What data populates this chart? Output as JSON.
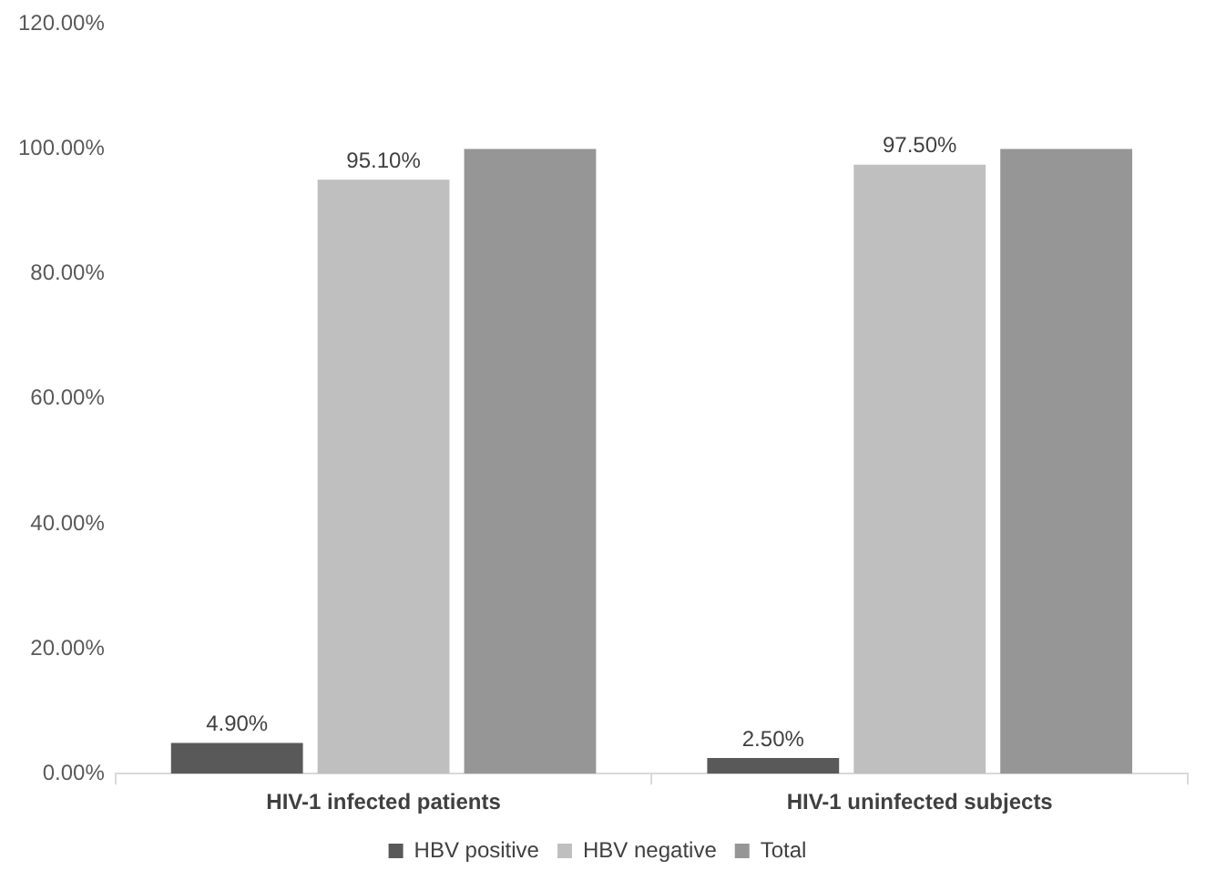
{
  "chart_data": {
    "type": "bar",
    "categories": [
      "HIV-1 infected patients",
      "HIV-1 uninfected subjects"
    ],
    "series": [
      {
        "name": "HBV positive",
        "color": "#595959",
        "values": [
          4.9,
          2.5
        ],
        "value_labels": [
          "4.90%",
          "2.50%"
        ]
      },
      {
        "name": "HBV negative",
        "color": "#bfbfbf",
        "values": [
          95.1,
          97.5
        ],
        "value_labels": [
          "95.10%",
          "97.50%"
        ]
      },
      {
        "name": "Total",
        "color": "#969696",
        "values": [
          100,
          100
        ]
      }
    ],
    "ylim": [
      0,
      120
    ],
    "yticks": [
      {
        "value": 0,
        "label": "0.00%"
      },
      {
        "value": 20,
        "label": "20.00%"
      },
      {
        "value": 40,
        "label": "40.00%"
      },
      {
        "value": 60,
        "label": "60.00%"
      },
      {
        "value": 80,
        "label": "80.00%"
      },
      {
        "value": 100,
        "label": "100.00%"
      },
      {
        "value": 120,
        "label": "120.00%"
      }
    ],
    "grid": false,
    "legend": "bottom"
  }
}
